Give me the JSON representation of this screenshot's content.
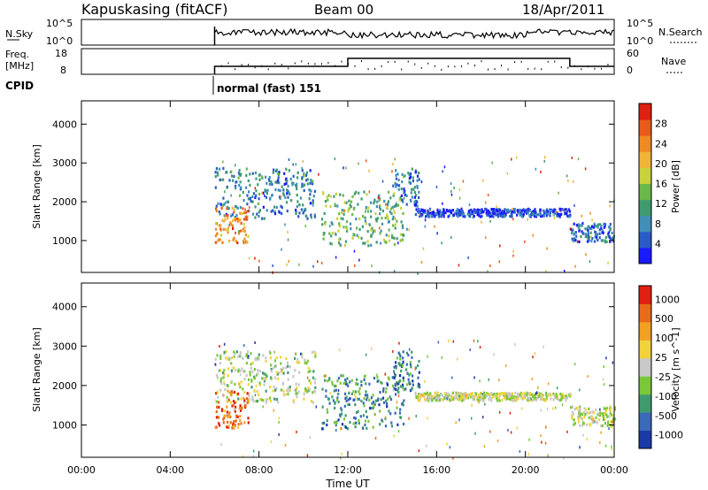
{
  "header": {
    "station": "Kapuskasing (fitACF)",
    "beam": "Beam 00",
    "date": "18/Apr/2011"
  },
  "top_panels": {
    "nsky_label": "N.Sky",
    "nsky_ticks": [
      "10^5",
      "10^0"
    ],
    "nsearch_label": "N.Search",
    "nsearch_ticks": [
      "10^5",
      "10^0"
    ],
    "freq_label_1": "Freq.",
    "freq_label_2": "[MHz]",
    "freq_ticks": [
      "18",
      "8"
    ],
    "nave_label": "Nave",
    "nave_ticks": [
      "60",
      "0"
    ],
    "cpid_label": "CPID",
    "cpid_value": "normal (fast) 151"
  },
  "chart_data": [
    {
      "type": "heatmap",
      "title": "",
      "xlabel": "",
      "ylabel": "Slant Range [km]",
      "xlim": [
        0,
        24
      ],
      "ylim": [
        180,
        4600
      ],
      "yticks": [
        "1000",
        "2000",
        "3000",
        "4000"
      ],
      "colorbar": {
        "label": "Power [dB]",
        "ticks": [
          "4",
          "8",
          "12",
          "16",
          "20",
          "24",
          "28"
        ],
        "colors": [
          "#1a1aff",
          "#2a5cc8",
          "#3f8fb8",
          "#3f9b6f",
          "#6ab84a",
          "#c8d23a",
          "#f2b437",
          "#f08a22",
          "#e85a1a",
          "#e02010"
        ]
      },
      "series": [
        {
          "t0": 6.0,
          "t1": 10.5,
          "r0": 1600,
          "r1": 2900,
          "level": 0.25
        },
        {
          "t0": 6.0,
          "t1": 7.5,
          "r0": 950,
          "r1": 1900,
          "level": 0.75
        },
        {
          "t0": 10.8,
          "t1": 14.5,
          "r0": 900,
          "r1": 2300,
          "level": 0.4
        },
        {
          "t0": 14.0,
          "t1": 15.2,
          "r0": 1900,
          "r1": 2900,
          "level": 0.2
        },
        {
          "t0": 15.0,
          "t1": 22.0,
          "r0": 1650,
          "r1": 1850,
          "level": 0.1
        },
        {
          "t0": 22.0,
          "t1": 24.0,
          "r0": 1000,
          "r1": 1500,
          "level": 0.2
        }
      ]
    },
    {
      "type": "heatmap",
      "title": "",
      "xlabel": "Time UT",
      "ylabel": "Slant Range [km]",
      "xlim": [
        0,
        24
      ],
      "ylim": [
        180,
        4600
      ],
      "xticks": [
        "00:00",
        "04:00",
        "08:00",
        "12:00",
        "16:00",
        "20:00",
        "00:00"
      ],
      "yticks": [
        "1000",
        "2000",
        "3000",
        "4000"
      ],
      "colorbar": {
        "label": "Velocity [m s^-1]",
        "ticks": [
          "1000",
          "500",
          "100",
          "25",
          "-25",
          "-100",
          "-500",
          "-1000"
        ],
        "colors": [
          "#1a3aa8",
          "#3a6ab8",
          "#3f9b6f",
          "#7ac83a",
          "#c8c8c8",
          "#f2d23a",
          "#f2a022",
          "#e86a1a",
          "#e02010"
        ]
      },
      "series": [
        {
          "t0": 6.0,
          "t1": 10.5,
          "r0": 1600,
          "r1": 2900,
          "level": 0.45
        },
        {
          "t0": 6.0,
          "t1": 7.5,
          "r0": 950,
          "r1": 1900,
          "level": 0.8
        },
        {
          "t0": 10.8,
          "t1": 14.5,
          "r0": 900,
          "r1": 2300,
          "level": 0.25
        },
        {
          "t0": 14.0,
          "t1": 15.2,
          "r0": 1900,
          "r1": 2900,
          "level": 0.2
        },
        {
          "t0": 15.0,
          "t1": 22.0,
          "r0": 1650,
          "r1": 1850,
          "level": 0.5
        },
        {
          "t0": 22.0,
          "t1": 24.0,
          "r0": 1000,
          "r1": 1500,
          "level": 0.5
        }
      ]
    }
  ]
}
